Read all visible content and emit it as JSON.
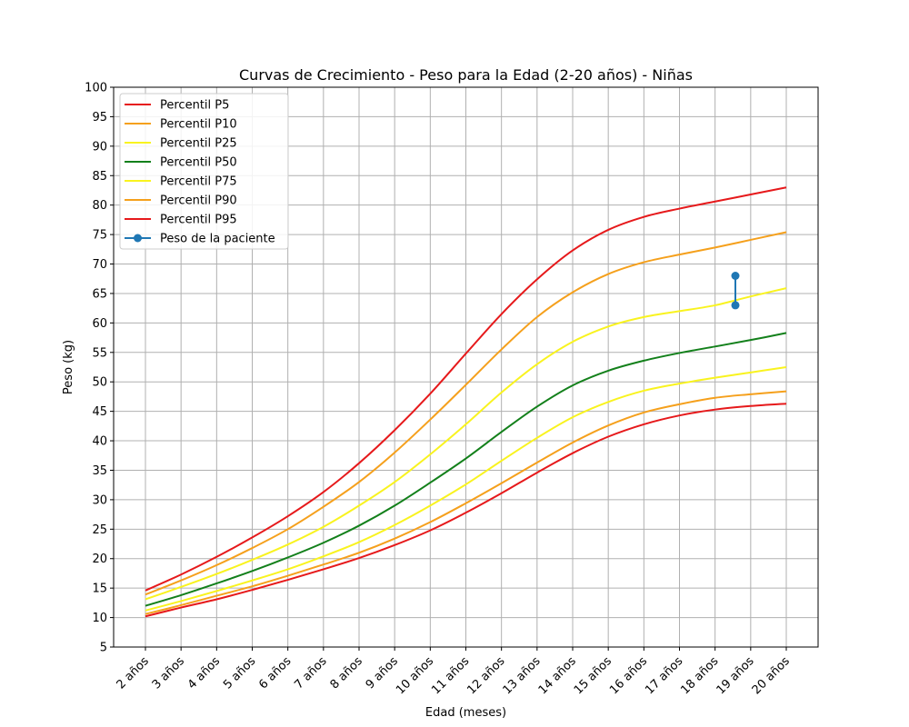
{
  "chart_data": {
    "type": "line",
    "title": "Curvas de Crecimiento - Peso para la Edad (2-20 años) - Niñas",
    "xlabel": "Edad (meses)",
    "ylabel": "Peso (kg)",
    "ylim": [
      5,
      100
    ],
    "y_ticks": [
      5,
      10,
      15,
      20,
      25,
      30,
      35,
      40,
      45,
      50,
      55,
      60,
      65,
      70,
      75,
      80,
      85,
      90,
      95,
      100
    ],
    "xlim": [
      1.1,
      20.9
    ],
    "x_ticks": [
      2,
      3,
      4,
      5,
      6,
      7,
      8,
      9,
      10,
      11,
      12,
      13,
      14,
      15,
      16,
      17,
      18,
      19,
      20
    ],
    "x_tick_labels": [
      "2 años",
      "3 años",
      "4 años",
      "5 años",
      "6 años",
      "7 años",
      "8 años",
      "9 años",
      "10 años",
      "11 años",
      "12 años",
      "13 años",
      "14 años",
      "15 años",
      "16 años",
      "17 años",
      "18 años",
      "19 años",
      "20 años"
    ],
    "grid": true,
    "legend_position": "upper-left",
    "x": [
      2,
      3,
      4,
      5,
      6,
      7,
      8,
      9,
      10,
      11,
      12,
      13,
      14,
      15,
      16,
      17,
      18,
      19,
      20
    ],
    "series": [
      {
        "name": "Percentil P5",
        "color": "#e6191b",
        "values": [
          10.2,
          11.7,
          13.1,
          14.7,
          16.4,
          18.2,
          20.1,
          22.3,
          24.8,
          27.8,
          31.1,
          34.6,
          37.9,
          40.7,
          42.8,
          44.3,
          45.3,
          45.9,
          46.3
        ]
      },
      {
        "name": "Percentil P10",
        "color": "#f5a01c",
        "values": [
          10.6,
          12.1,
          13.7,
          15.3,
          17.1,
          19.0,
          21.0,
          23.4,
          26.2,
          29.4,
          32.8,
          36.3,
          39.7,
          42.6,
          44.8,
          46.2,
          47.3,
          47.9,
          48.4
        ]
      },
      {
        "name": "Percentil P25",
        "color": "#f9f31f",
        "values": [
          11.2,
          12.8,
          14.5,
          16.3,
          18.2,
          20.4,
          22.8,
          25.7,
          29.0,
          32.6,
          36.6,
          40.5,
          44.0,
          46.6,
          48.5,
          49.7,
          50.7,
          51.6,
          52.5
        ]
      },
      {
        "name": "Percentil P50",
        "color": "#13801b",
        "values": [
          12.0,
          13.8,
          15.8,
          17.9,
          20.2,
          22.7,
          25.6,
          29.0,
          32.9,
          37.0,
          41.5,
          45.8,
          49.4,
          51.9,
          53.6,
          54.9,
          56.0,
          57.1,
          58.3
        ]
      },
      {
        "name": "Percentil P75",
        "color": "#f9f31f",
        "values": [
          13.1,
          15.2,
          17.4,
          19.8,
          22.4,
          25.4,
          29.0,
          33.0,
          37.7,
          42.8,
          48.2,
          53.0,
          56.8,
          59.4,
          61.0,
          62.0,
          63.0,
          64.5,
          65.9
        ]
      },
      {
        "name": "Percentil P90",
        "color": "#f5a01c",
        "values": [
          13.9,
          16.3,
          18.9,
          21.8,
          25.0,
          28.8,
          33.0,
          38.0,
          43.6,
          49.5,
          55.5,
          61.0,
          65.2,
          68.3,
          70.3,
          71.6,
          72.8,
          74.1,
          75.4
        ]
      },
      {
        "name": "Percentil P95",
        "color": "#e6191b",
        "values": [
          14.6,
          17.3,
          20.3,
          23.6,
          27.2,
          31.3,
          36.2,
          41.8,
          48.0,
          54.8,
          61.5,
          67.4,
          72.3,
          75.8,
          78.0,
          79.4,
          80.6,
          81.8,
          83.0
        ]
      }
    ],
    "patient": {
      "name": "Peso de la paciente",
      "color": "#1f77b4",
      "points": [
        {
          "x": 18.57,
          "y": 68
        },
        {
          "x": 18.57,
          "y": 63
        }
      ]
    }
  }
}
